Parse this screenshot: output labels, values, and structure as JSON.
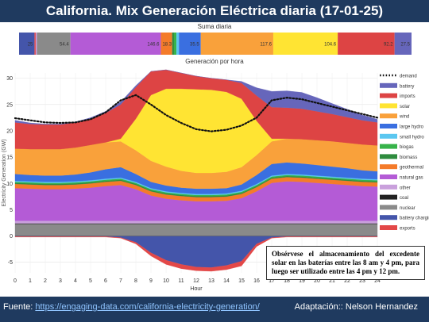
{
  "title": "California. Mix Generación Eléctrica diaria (17-01-25)",
  "footer": {
    "source_label": "Fuente:",
    "source_url": "https://engaging-data.com/california-electricity-generation/",
    "adaptation": "Adaptación:: Nelson Hernandez"
  },
  "note": "Obsérvese el almacenamiento del excedente solar en las baterías entre las 8 am y 4 pm, para luego ser utilizado entre las 4 pm y 12 pm.",
  "colors": {
    "demand": "#111111",
    "battery": "#6666bb",
    "imports": "#dd4444",
    "solar": "#ffe433",
    "wind": "#f9a13b",
    "large_hydro": "#3a6fe0",
    "small_hydro": "#5bc7f0",
    "biogas": "#37b34a",
    "biomass": "#2e8b3e",
    "geothermal": "#f47b2a",
    "natural_gas": "#b45bd6",
    "other": "#c9a0dc",
    "coal": "#222222",
    "nuclear": "#8a8a8a",
    "battery_charging": "#4455aa",
    "exports": "#e34848"
  },
  "chart_data": [
    {
      "type": "bar",
      "title": "Suma diaria",
      "orientation": "horizontal-stacked",
      "segments": [
        {
          "label": "0",
          "value": 0,
          "color": "#222222"
        },
        {
          "label": "25",
          "value": 25,
          "color": "#4455aa"
        },
        {
          "label": "",
          "value": 2,
          "color": "#e34848"
        },
        {
          "label": "",
          "value": 2,
          "color": "#c9a0dc"
        },
        {
          "label": "54.4",
          "value": 54.4,
          "color": "#8a8a8a"
        },
        {
          "label": "146.6",
          "value": 146.6,
          "color": "#b45bd6"
        },
        {
          "label": "18.3",
          "value": 18.3,
          "color": "#f47b2a"
        },
        {
          "label": "",
          "value": 3,
          "color": "#2e8b3e"
        },
        {
          "label": "",
          "value": 4,
          "color": "#37b34a"
        },
        {
          "label": "",
          "value": 4,
          "color": "#5bc7f0"
        },
        {
          "label": "35.5",
          "value": 35.5,
          "color": "#3a6fe0"
        },
        {
          "label": "117.6",
          "value": 117.6,
          "color": "#f9a13b"
        },
        {
          "label": "104.6",
          "value": 104.6,
          "color": "#ffe433"
        },
        {
          "label": "92.2",
          "value": 92.2,
          "color": "#dd4444"
        },
        {
          "label": "27.5",
          "value": 27.5,
          "color": "#6666bb"
        }
      ]
    },
    {
      "type": "area",
      "title": "Generación por hora",
      "xlabel": "Hour",
      "ylabel": "Electricity Generation (GW)",
      "xlim": [
        0,
        24
      ],
      "ylim": [
        -7,
        31
      ],
      "x_ticks": [
        0,
        1,
        2,
        3,
        4,
        5,
        6,
        7,
        8,
        9,
        10,
        11,
        12,
        13,
        14,
        15,
        16,
        17,
        18,
        19,
        20,
        21,
        22,
        23,
        24
      ],
      "y_ticks": [
        -5,
        0,
        5,
        10,
        15,
        20,
        25,
        30
      ],
      "legend_position": "right",
      "x": [
        0,
        1,
        2,
        3,
        4,
        5,
        6,
        7,
        8,
        9,
        10,
        11,
        12,
        13,
        14,
        15,
        16,
        17,
        18,
        19,
        20,
        21,
        22,
        23,
        24
      ],
      "series": [
        {
          "name": "nuclear",
          "key": "nuclear",
          "values": [
            2.3,
            2.3,
            2.3,
            2.3,
            2.3,
            2.3,
            2.3,
            2.3,
            2.3,
            2.3,
            2.3,
            2.3,
            2.3,
            2.3,
            2.3,
            2.3,
            2.3,
            2.3,
            2.3,
            2.3,
            2.3,
            2.3,
            2.3,
            2.3,
            2.3
          ]
        },
        {
          "name": "coal",
          "key": "coal",
          "values": [
            0.1,
            0.1,
            0.1,
            0.1,
            0.1,
            0.1,
            0.1,
            0.1,
            0.1,
            0.1,
            0.1,
            0.1,
            0.1,
            0.1,
            0.1,
            0.1,
            0.1,
            0.1,
            0.1,
            0.1,
            0.1,
            0.1,
            0.1,
            0.1,
            0.1
          ]
        },
        {
          "name": "other",
          "key": "other",
          "values": [
            0.5,
            0.5,
            0.5,
            0.5,
            0.5,
            0.5,
            0.5,
            0.5,
            0.5,
            0.5,
            0.5,
            0.5,
            0.5,
            0.5,
            0.5,
            0.5,
            0.5,
            0.5,
            0.5,
            0.5,
            0.5,
            0.5,
            0.5,
            0.5,
            0.5
          ]
        },
        {
          "name": "natural gas",
          "key": "natural_gas",
          "values": [
            6.2,
            6.1,
            6.0,
            6.0,
            6.1,
            6.3,
            6.6,
            6.8,
            6.0,
            4.8,
            4.2,
            3.9,
            3.7,
            3.7,
            3.8,
            4.3,
            5.6,
            7.2,
            7.5,
            7.4,
            7.2,
            7.0,
            6.8,
            6.6,
            6.5
          ]
        },
        {
          "name": "geothermal",
          "key": "geothermal",
          "values": [
            0.8,
            0.8,
            0.8,
            0.8,
            0.8,
            0.8,
            0.8,
            0.8,
            0.8,
            0.8,
            0.8,
            0.8,
            0.8,
            0.8,
            0.8,
            0.8,
            0.8,
            0.8,
            0.8,
            0.8,
            0.8,
            0.8,
            0.8,
            0.8,
            0.8
          ]
        },
        {
          "name": "biomass",
          "key": "biomass",
          "values": [
            0.2,
            0.2,
            0.2,
            0.2,
            0.2,
            0.2,
            0.2,
            0.2,
            0.2,
            0.2,
            0.2,
            0.2,
            0.2,
            0.2,
            0.2,
            0.2,
            0.2,
            0.2,
            0.2,
            0.2,
            0.2,
            0.2,
            0.2,
            0.2,
            0.2
          ]
        },
        {
          "name": "biogas",
          "key": "biogas",
          "values": [
            0.2,
            0.2,
            0.2,
            0.2,
            0.2,
            0.2,
            0.2,
            0.2,
            0.2,
            0.2,
            0.2,
            0.2,
            0.2,
            0.2,
            0.2,
            0.2,
            0.2,
            0.2,
            0.2,
            0.2,
            0.2,
            0.2,
            0.2,
            0.2,
            0.2
          ]
        },
        {
          "name": "small hydro",
          "key": "small_hydro",
          "values": [
            0.2,
            0.2,
            0.2,
            0.2,
            0.2,
            0.2,
            0.2,
            0.2,
            0.2,
            0.2,
            0.2,
            0.2,
            0.2,
            0.2,
            0.2,
            0.2,
            0.2,
            0.2,
            0.2,
            0.2,
            0.2,
            0.2,
            0.2,
            0.2,
            0.2
          ]
        },
        {
          "name": "large hydro",
          "key": "large_hydro",
          "values": [
            1.3,
            1.2,
            1.2,
            1.2,
            1.3,
            1.5,
            1.8,
            2.0,
            1.5,
            1.2,
            1.1,
            1.0,
            1.0,
            1.0,
            1.0,
            1.2,
            1.7,
            2.2,
            2.2,
            2.1,
            2.0,
            1.9,
            1.8,
            1.6,
            1.5
          ]
        },
        {
          "name": "wind",
          "key": "wind",
          "values": [
            4.8,
            4.9,
            5.0,
            5.0,
            5.1,
            5.2,
            5.1,
            4.9,
            4.5,
            4.0,
            3.6,
            3.2,
            3.0,
            3.0,
            3.1,
            3.3,
            3.8,
            4.3,
            4.5,
            4.6,
            4.7,
            4.8,
            4.8,
            4.9,
            4.9
          ]
        },
        {
          "name": "solar",
          "key": "solar",
          "values": [
            0,
            0,
            0,
            0,
            0,
            0,
            0,
            0.5,
            6.0,
            12.5,
            14.8,
            15.6,
            15.9,
            15.8,
            15.2,
            13.0,
            6.5,
            0.5,
            0,
            0,
            0,
            0,
            0,
            0,
            0
          ]
        },
        {
          "name": "imports",
          "key": "imports",
          "values": [
            5.0,
            4.8,
            4.7,
            4.7,
            4.8,
            5.0,
            5.6,
            6.5,
            6.0,
            4.5,
            3.6,
            3.0,
            2.5,
            2.2,
            2.3,
            3.0,
            4.8,
            6.0,
            5.9,
            5.8,
            5.5,
            5.2,
            4.9,
            4.6,
            4.4
          ]
        },
        {
          "name": "battery",
          "key": "battery",
          "values": [
            0.4,
            0.2,
            0.1,
            0.1,
            0.1,
            0.2,
            0.3,
            0.5,
            0.3,
            0,
            0,
            0,
            0,
            0,
            0,
            0.3,
            1.5,
            3.0,
            3.2,
            3.1,
            2.6,
            2.0,
            1.5,
            1.0,
            0.6
          ]
        },
        {
          "name": "battery charging",
          "key": "battery_charging",
          "values": [
            -0.1,
            -0.1,
            -0.1,
            -0.1,
            -0.1,
            -0.1,
            -0.1,
            -0.3,
            -1.2,
            -3.2,
            -4.6,
            -5.4,
            -5.9,
            -6.0,
            -5.6,
            -4.8,
            -1.5,
            -0.3,
            -0.1,
            -0.1,
            -0.1,
            -0.1,
            -0.1,
            -0.1,
            -0.1
          ]
        },
        {
          "name": "exports",
          "key": "exports",
          "values": [
            -0.1,
            -0.1,
            -0.1,
            -0.1,
            -0.1,
            -0.1,
            -0.1,
            -0.1,
            -0.3,
            -0.6,
            -0.8,
            -0.8,
            -0.7,
            -0.7,
            -0.8,
            -0.9,
            -0.5,
            -0.1,
            -0.1,
            -0.1,
            -0.1,
            -0.1,
            -0.1,
            -0.1,
            -0.1
          ]
        }
      ],
      "demand": {
        "name": "demand",
        "values": [
          22.4,
          22.0,
          21.6,
          21.5,
          21.6,
          22.2,
          23.5,
          25.8,
          26.8,
          25.0,
          23.0,
          21.5,
          20.3,
          19.9,
          20.2,
          21.0,
          22.5,
          25.8,
          26.3,
          26.0,
          25.3,
          24.6,
          23.9,
          23.2,
          22.5
        ]
      },
      "legend": [
        "demand",
        "battery",
        "imports",
        "solar",
        "wind",
        "large hydro",
        "small hydro",
        "biogas",
        "biomass",
        "geothermal",
        "natural gas",
        "other",
        "coal",
        "nuclear",
        "battery charging",
        "exports"
      ]
    }
  ]
}
